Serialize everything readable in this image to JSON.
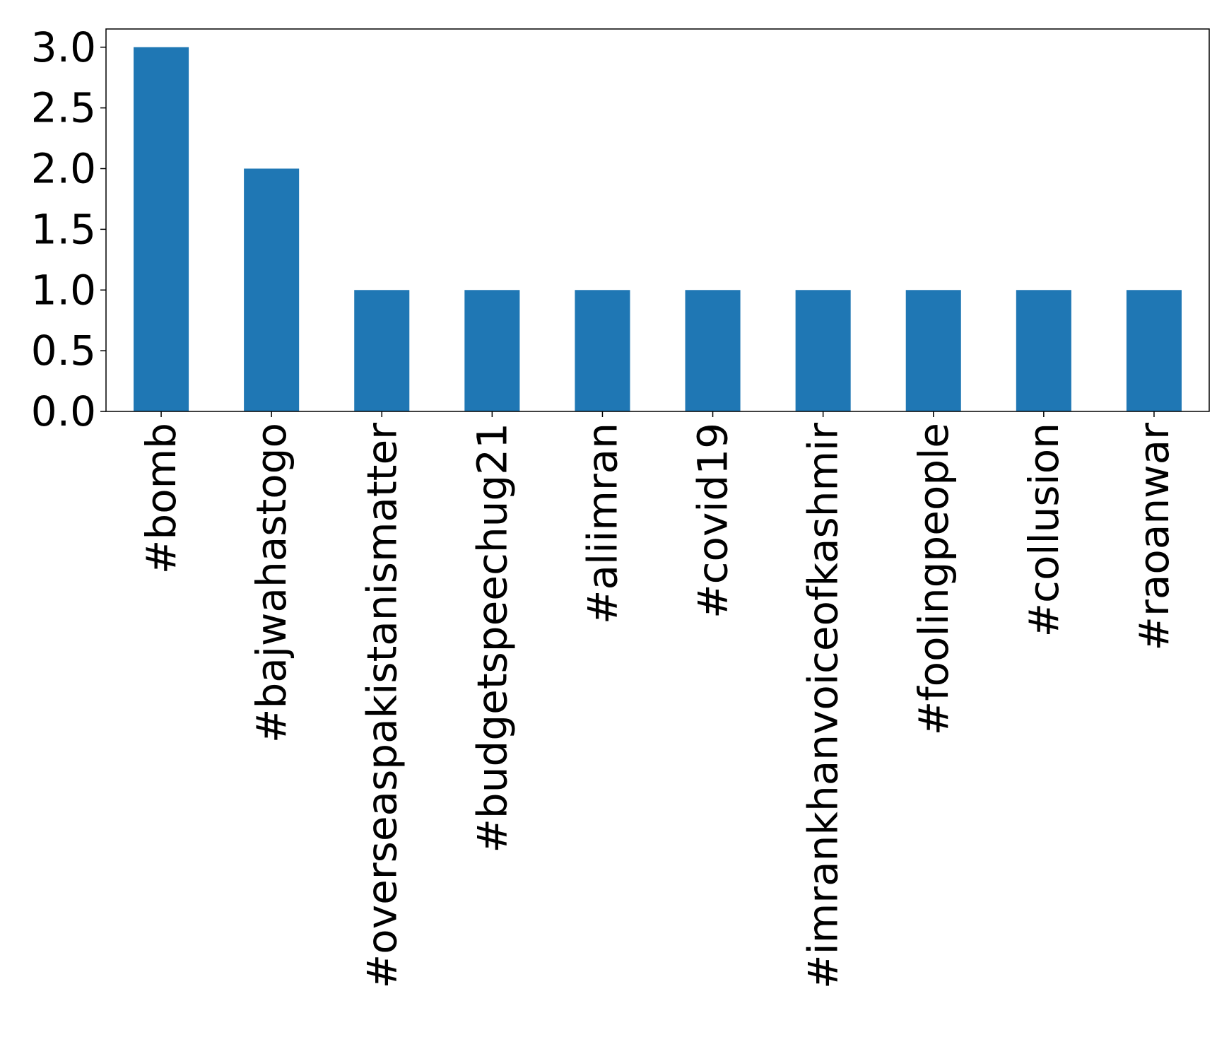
{
  "chart_data": {
    "type": "bar",
    "title": "",
    "xlabel": "",
    "ylabel": "",
    "categories": [
      "#bomb",
      "#bajwahastogo",
      "#overseaspakistanismatter",
      "#budgetspeechug21",
      "#aliimran",
      "#covid19",
      "#imrankhanvoiceofkashmir",
      "#foolingpeople",
      "#collusion",
      "#raoanwar"
    ],
    "values": [
      3,
      2,
      1,
      1,
      1,
      1,
      1,
      1,
      1,
      1
    ],
    "ylim": [
      0,
      3.15
    ],
    "yticks": [
      "0.0",
      "0.5",
      "1.0",
      "1.5",
      "2.0",
      "2.5",
      "3.0"
    ],
    "bar_color": "#1f77b4",
    "grid": false,
    "legend": "none"
  }
}
